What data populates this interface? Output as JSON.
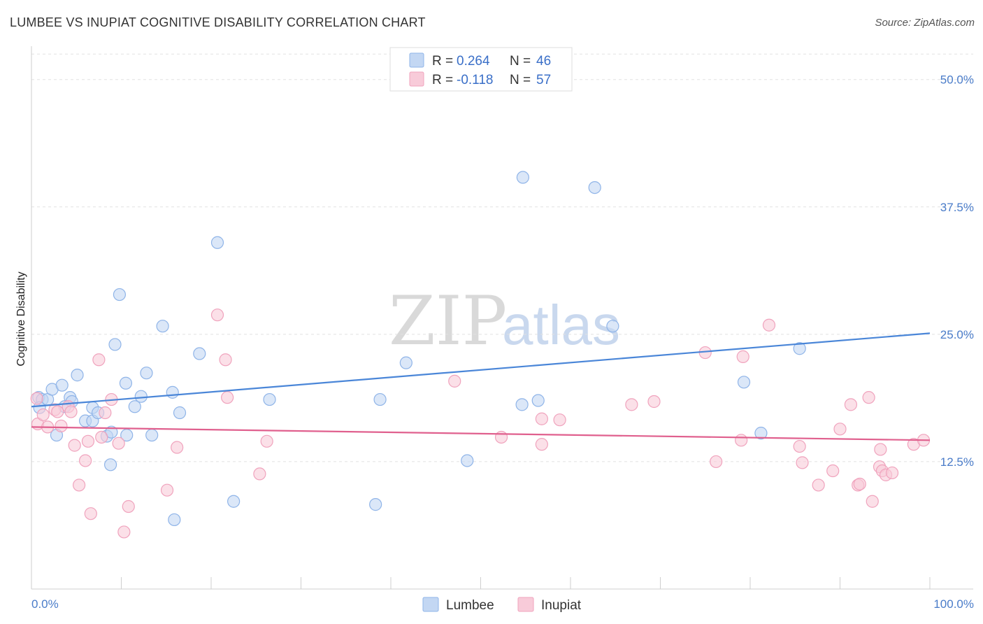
{
  "header": {
    "title": "LUMBEE VS INUPIAT COGNITIVE DISABILITY CORRELATION CHART",
    "source": "Source: ZipAtlas.com"
  },
  "watermark": {
    "zip": "ZIP",
    "atlas": "atlas"
  },
  "legend": {
    "rows": [
      {
        "r_label": "R =",
        "r_value": "0.264",
        "n_label": "N =",
        "n_value": "46",
        "color": "#8fb4e8",
        "fill": "#c3d7f3"
      },
      {
        "r_label": "R =",
        "r_value": "-0.118",
        "n_label": "N =",
        "n_value": "57",
        "color": "#f0a3bd",
        "fill": "#f8cbd9"
      }
    ]
  },
  "bottom_legend": [
    {
      "label": "Lumbee",
      "color": "#8fb4e8",
      "fill": "#c3d7f3"
    },
    {
      "label": "Inupiat",
      "color": "#f0a3bd",
      "fill": "#f8cbd9"
    }
  ],
  "chart_data": {
    "type": "scatter",
    "title": "LUMBEE VS INUPIAT COGNITIVE DISABILITY CORRELATION CHART",
    "xlabel": "",
    "ylabel": "Cognitive Disability",
    "xlim": [
      0,
      100
    ],
    "ylim": [
      0,
      53
    ],
    "x_tick_labels": [
      "0.0%",
      "100.0%"
    ],
    "y_ticks": [
      12.5,
      25.0,
      37.5,
      50.0
    ],
    "y_tick_labels": [
      "12.5%",
      "25.0%",
      "37.5%",
      "50.0%"
    ],
    "grid": true,
    "series": [
      {
        "name": "Lumbee",
        "color": "#4a86d8",
        "marker_fill": "#c3d7f3",
        "marker_stroke": "#8fb4e8",
        "trend": {
          "x": [
            0,
            100
          ],
          "y": [
            17.9,
            25.1
          ]
        },
        "points": [
          [
            0.8,
            18.8
          ],
          [
            1.2,
            18.6
          ],
          [
            0.9,
            17.8
          ],
          [
            1.8,
            18.6
          ],
          [
            2.3,
            19.6
          ],
          [
            3.4,
            20.0
          ],
          [
            2.8,
            15.1
          ],
          [
            4.3,
            18.8
          ],
          [
            4.5,
            18.4
          ],
          [
            3.7,
            17.9
          ],
          [
            5.1,
            21.0
          ],
          [
            6.0,
            16.5
          ],
          [
            6.8,
            16.5
          ],
          [
            6.8,
            17.8
          ],
          [
            7.4,
            17.3
          ],
          [
            8.4,
            15.0
          ],
          [
            8.8,
            12.2
          ],
          [
            8.9,
            15.4
          ],
          [
            9.3,
            24.0
          ],
          [
            9.8,
            28.9
          ],
          [
            10.6,
            15.1
          ],
          [
            10.5,
            20.2
          ],
          [
            11.5,
            17.9
          ],
          [
            12.2,
            18.9
          ],
          [
            12.8,
            21.2
          ],
          [
            13.4,
            15.1
          ],
          [
            14.6,
            25.8
          ],
          [
            15.7,
            19.3
          ],
          [
            15.9,
            6.8
          ],
          [
            16.5,
            17.3
          ],
          [
            18.7,
            23.1
          ],
          [
            20.7,
            34.0
          ],
          [
            22.5,
            8.6
          ],
          [
            26.5,
            18.6
          ],
          [
            38.3,
            8.3
          ],
          [
            38.8,
            18.6
          ],
          [
            41.7,
            22.2
          ],
          [
            48.5,
            12.6
          ],
          [
            54.6,
            18.1
          ],
          [
            54.7,
            40.4
          ],
          [
            56.4,
            18.5
          ],
          [
            62.7,
            39.4
          ],
          [
            64.7,
            25.8
          ],
          [
            79.3,
            20.3
          ],
          [
            81.2,
            15.3
          ],
          [
            85.5,
            23.6
          ]
        ]
      },
      {
        "name": "Inupiat",
        "color": "#e0608e",
        "marker_fill": "#f8cbd9",
        "marker_stroke": "#f0a3bd",
        "trend": {
          "x": [
            0,
            100
          ],
          "y": [
            15.9,
            14.6
          ]
        },
        "points": [
          [
            0.6,
            18.7
          ],
          [
            0.7,
            16.2
          ],
          [
            1.3,
            17.1
          ],
          [
            1.8,
            15.9
          ],
          [
            2.6,
            17.6
          ],
          [
            2.9,
            17.4
          ],
          [
            3.3,
            16.0
          ],
          [
            4.1,
            17.9
          ],
          [
            4.4,
            17.4
          ],
          [
            4.8,
            14.1
          ],
          [
            5.3,
            10.2
          ],
          [
            6.0,
            12.6
          ],
          [
            6.3,
            14.5
          ],
          [
            6.6,
            7.4
          ],
          [
            7.5,
            22.5
          ],
          [
            7.8,
            14.9
          ],
          [
            8.2,
            17.3
          ],
          [
            8.9,
            18.6
          ],
          [
            9.7,
            14.3
          ],
          [
            10.3,
            5.6
          ],
          [
            10.8,
            8.1
          ],
          [
            15.1,
            9.7
          ],
          [
            16.2,
            13.9
          ],
          [
            20.7,
            26.9
          ],
          [
            21.6,
            22.5
          ],
          [
            21.8,
            18.8
          ],
          [
            25.4,
            11.3
          ],
          [
            26.2,
            14.5
          ],
          [
            47.1,
            20.4
          ],
          [
            52.3,
            14.9
          ],
          [
            56.8,
            14.2
          ],
          [
            56.8,
            16.7
          ],
          [
            58.8,
            16.6
          ],
          [
            66.8,
            18.1
          ],
          [
            69.3,
            18.4
          ],
          [
            75.0,
            23.2
          ],
          [
            76.2,
            12.5
          ],
          [
            79.0,
            14.6
          ],
          [
            79.2,
            22.8
          ],
          [
            82.1,
            25.9
          ],
          [
            85.5,
            14.0
          ],
          [
            85.8,
            12.4
          ],
          [
            87.6,
            10.2
          ],
          [
            89.2,
            11.6
          ],
          [
            90.0,
            15.7
          ],
          [
            91.2,
            18.1
          ],
          [
            92.0,
            10.2
          ],
          [
            92.2,
            10.3
          ],
          [
            93.2,
            18.8
          ],
          [
            93.6,
            8.6
          ],
          [
            94.4,
            12.0
          ],
          [
            94.5,
            13.7
          ],
          [
            94.7,
            11.6
          ],
          [
            95.1,
            11.2
          ],
          [
            95.8,
            11.4
          ],
          [
            98.2,
            14.2
          ],
          [
            99.3,
            14.6
          ]
        ]
      }
    ]
  }
}
